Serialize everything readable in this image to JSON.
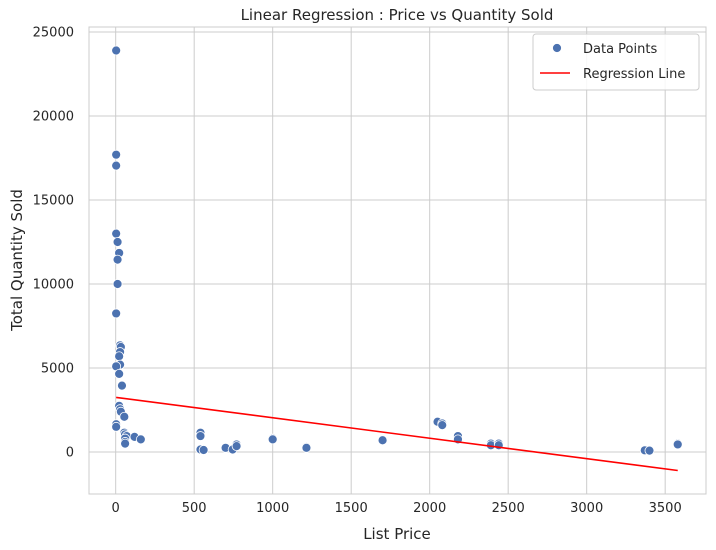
{
  "chart_data": {
    "type": "scatter",
    "title": "Linear Regression : Price vs Quantity Sold",
    "xlabel": "List Price",
    "ylabel": "Total Quantity Sold",
    "xlim": [
      -170,
      3760
    ],
    "ylim": [
      -2500,
      25300
    ],
    "xticks": [
      0,
      500,
      1000,
      1500,
      2000,
      2500,
      3000,
      3500
    ],
    "yticks": [
      0,
      5000,
      10000,
      15000,
      20000,
      25000
    ],
    "grid": true,
    "legend_position": "top-right",
    "colors": {
      "points": "#4c72b0",
      "line": "#ff0000",
      "grid": "#cccccc"
    },
    "series": [
      {
        "name": "Data Points",
        "kind": "scatter",
        "points": [
          [
            3,
            23900
          ],
          [
            3,
            17700
          ],
          [
            3,
            17050
          ],
          [
            3,
            13000
          ],
          [
            12,
            12500
          ],
          [
            22,
            11850
          ],
          [
            12,
            11450
          ],
          [
            12,
            10000
          ],
          [
            3,
            8250
          ],
          [
            28,
            6350
          ],
          [
            33,
            6250
          ],
          [
            28,
            5950
          ],
          [
            22,
            5700
          ],
          [
            28,
            5200
          ],
          [
            3,
            5100
          ],
          [
            22,
            4650
          ],
          [
            40,
            3950
          ],
          [
            22,
            2750
          ],
          [
            28,
            2550
          ],
          [
            33,
            2400
          ],
          [
            55,
            2100
          ],
          [
            3,
            1650
          ],
          [
            3,
            1500
          ],
          [
            55,
            1150
          ],
          [
            60,
            1050
          ],
          [
            70,
            950
          ],
          [
            60,
            800
          ],
          [
            60,
            600
          ],
          [
            60,
            500
          ],
          [
            120,
            900
          ],
          [
            160,
            750
          ],
          [
            540,
            1150
          ],
          [
            540,
            950
          ],
          [
            540,
            150
          ],
          [
            560,
            120
          ],
          [
            700,
            250
          ],
          [
            745,
            150
          ],
          [
            770,
            450
          ],
          [
            770,
            350
          ],
          [
            1000,
            800
          ],
          [
            1000,
            750
          ],
          [
            1215,
            300
          ],
          [
            1215,
            250
          ],
          [
            1700,
            700
          ],
          [
            2050,
            1800
          ],
          [
            2080,
            1700
          ],
          [
            2080,
            1600
          ],
          [
            2180,
            950
          ],
          [
            2180,
            750
          ],
          [
            2390,
            500
          ],
          [
            2390,
            400
          ],
          [
            2440,
            500
          ],
          [
            2440,
            400
          ],
          [
            3370,
            100
          ],
          [
            3400,
            80
          ],
          [
            3580,
            500
          ],
          [
            3580,
            450
          ]
        ]
      },
      {
        "name": "Regression Line",
        "kind": "line",
        "points": [
          [
            3,
            3250
          ],
          [
            3580,
            -1100
          ]
        ]
      }
    ]
  }
}
